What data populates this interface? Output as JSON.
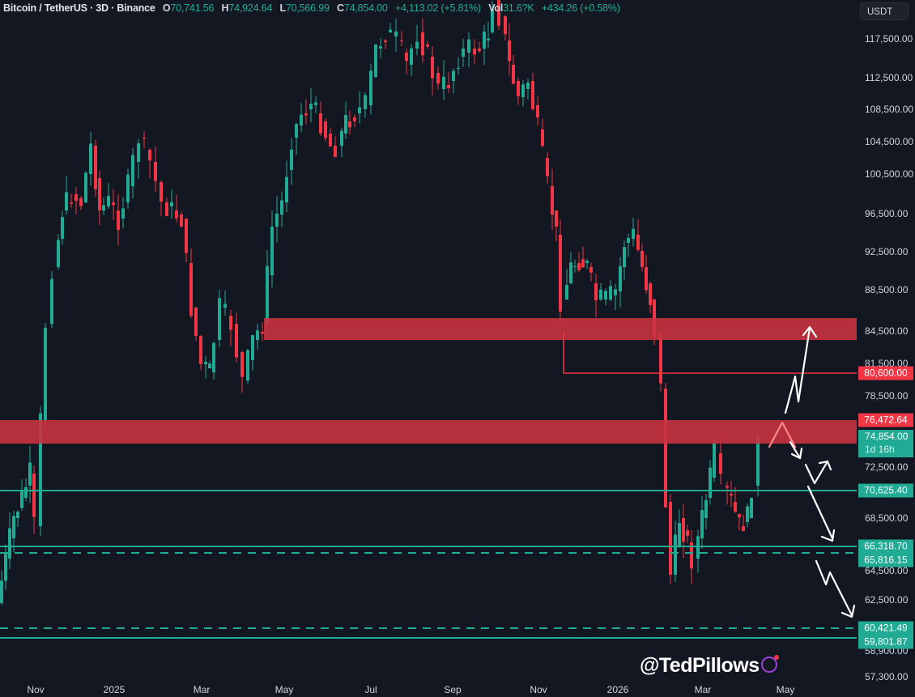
{
  "header": {
    "symbol": "Bitcoin / TetherUS · 3D · Binance",
    "open_label": "O",
    "open": "70,741.56",
    "high_label": "H",
    "high": "74,924.64",
    "low_label": "L",
    "low": "70,566.99",
    "close_label": "C",
    "close": "74,854.00",
    "change": "+4,113.02 (+5.81%)",
    "vol_label": "Vol",
    "vol": "31.6?K",
    "vol_change": "+434.26 (+0.58%)"
  },
  "currency": "USDT",
  "colors": {
    "background": "#131722",
    "up": "#22ab94",
    "down": "#f23645",
    "zone": "#c8323f",
    "text": "#d1d4dc"
  },
  "watermark": "@TedPillows",
  "chart_data": {
    "type": "candlestick",
    "title": "Bitcoin / TetherUS · 3D · Binance",
    "xlabel": "",
    "ylabel": "USDT",
    "x_ticks": [
      "Nov",
      "2025",
      "Mar",
      "May",
      "Jul",
      "Sep",
      "Nov",
      "2026",
      "Mar",
      "May"
    ],
    "y_ticks": [
      117500,
      112500,
      108500,
      104500,
      100500,
      96500,
      92500,
      88500,
      84500,
      81500,
      78500,
      72500,
      68500,
      64500,
      62500,
      58900,
      57300
    ],
    "ylim": [
      56800,
      121000
    ],
    "series": [
      {
        "name": "price_path_approx",
        "points": [
          [
            "Oct 2024",
            60000
          ],
          [
            "Nov 2024",
            67000
          ],
          [
            "mid Nov 2024",
            91000
          ],
          [
            "Dec 2024",
            100000
          ],
          [
            "Jan 2025",
            105000
          ],
          [
            "Feb 2025",
            96000
          ],
          [
            "Mar 2025",
            82000
          ],
          [
            "Apr 2025",
            77000
          ],
          [
            "May 2025",
            97000
          ],
          [
            "Jun 2025",
            105000
          ],
          [
            "Jul 2025",
            118000
          ],
          [
            "Aug 2025",
            115000
          ],
          [
            "Sep 2025",
            110000
          ],
          [
            "early Oct 2025",
            124000
          ],
          [
            "Nov 2025",
            90000
          ],
          [
            "Dec 2025",
            87500
          ],
          [
            "Jan 2026",
            94000
          ],
          [
            "early Feb 2026",
            60000
          ],
          [
            "Mar 2026",
            70000
          ],
          [
            "Apr 2026",
            74854
          ]
        ]
      }
    ],
    "zones": [
      {
        "type": "resistance",
        "from": 83800,
        "to": 85900,
        "color": "#c8323f"
      },
      {
        "type": "resistance",
        "from": 74500,
        "to": 76472.64,
        "color": "#c8323f"
      }
    ],
    "levels": [
      {
        "price": 80600.0,
        "style": "solid",
        "color": "#f23645"
      },
      {
        "price": 76472.64,
        "style": "label",
        "color": "#f23645"
      },
      {
        "price": 74854.0,
        "style": "last-price",
        "color": "#22ab94",
        "countdown": "1d 16h"
      },
      {
        "price": 70625.4,
        "style": "solid",
        "color": "#22ab94"
      },
      {
        "price": 66318.7,
        "style": "solid",
        "color": "#22ab94"
      },
      {
        "price": 65816.15,
        "style": "dashed",
        "color": "#22ab94"
      },
      {
        "price": 60421.49,
        "style": "dashed",
        "color": "#22ab94"
      },
      {
        "price": 59801.87,
        "style": "solid",
        "color": "#22ab94"
      }
    ],
    "annotations": [
      "White arrows: bullish path up to ~85,000 zone",
      "White arrows: bearish path down toward ~60,000 via 70,625 and 66,318"
    ]
  },
  "price_labels": {
    "l80600": "80,600.00",
    "l76472": "76,472.64",
    "l74854": "74,854.00",
    "countdown": "1d 16h",
    "l70625": "70,625.40",
    "l66318": "66,318.70",
    "l65816": "65,816.15",
    "l60421": "60,421.49",
    "l59801": "59,801.87"
  },
  "y_tick_labels": [
    "117,500.00",
    "112,500.00",
    "108,500.00",
    "104,500.00",
    "100,500.00",
    "96,500.00",
    "92,500.00",
    "88,500.00",
    "84,500.00",
    "81,500.00",
    "78,500.00",
    "72,500.00",
    "68,500.00",
    "64,500.00",
    "62,500.00",
    "58,900.00",
    "57,300.00"
  ],
  "x_tick_labels": [
    "Nov",
    "2025",
    "Mar",
    "May",
    "Jul",
    "Sep",
    "Nov",
    "2026",
    "Mar",
    "May"
  ]
}
